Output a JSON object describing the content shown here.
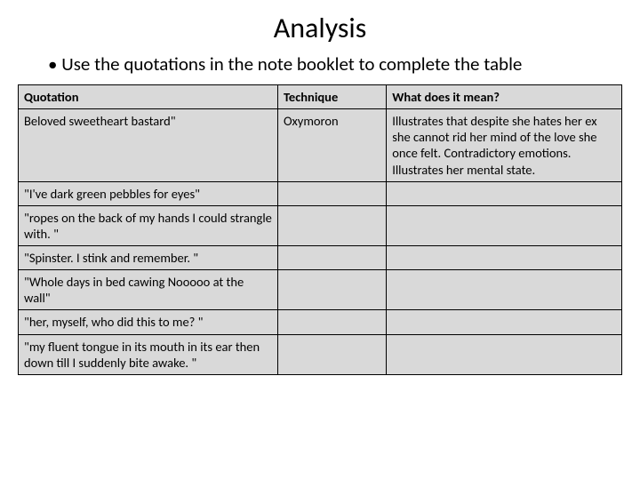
{
  "title": "Analysis",
  "bullet": "Use the quotations in the note booklet to complete the table",
  "table": {
    "background_color": "#d9d9d9",
    "border_color": "#000000",
    "header_fontweight": "700",
    "cell_fontsize": 14.5,
    "columns": [
      "Quotation",
      "Technique",
      "What does it mean?"
    ],
    "column_widths_pct": [
      43,
      18,
      39
    ],
    "rows": [
      [
        "Beloved sweetheart bastard\"",
        "Oxymoron",
        "Illustrates that despite she hates her ex she cannot rid her mind of the love she once felt. Contradictory emotions. Illustrates her mental state."
      ],
      [
        "\"I've dark green pebbles for eyes\"",
        "",
        ""
      ],
      [
        "\"ropes on the back of my hands I could strangle with. \"",
        "",
        ""
      ],
      [
        "\"Spinster. I stink and remember. \"",
        "",
        ""
      ],
      [
        "\"Whole days in bed cawing Nooooo at the wall\"",
        "",
        ""
      ],
      [
        "\"her, myself, who did this to me? \"",
        "",
        ""
      ],
      [
        "\"my fluent tongue in its mouth in its ear then down till I suddenly bite awake. \"",
        "",
        ""
      ]
    ]
  }
}
